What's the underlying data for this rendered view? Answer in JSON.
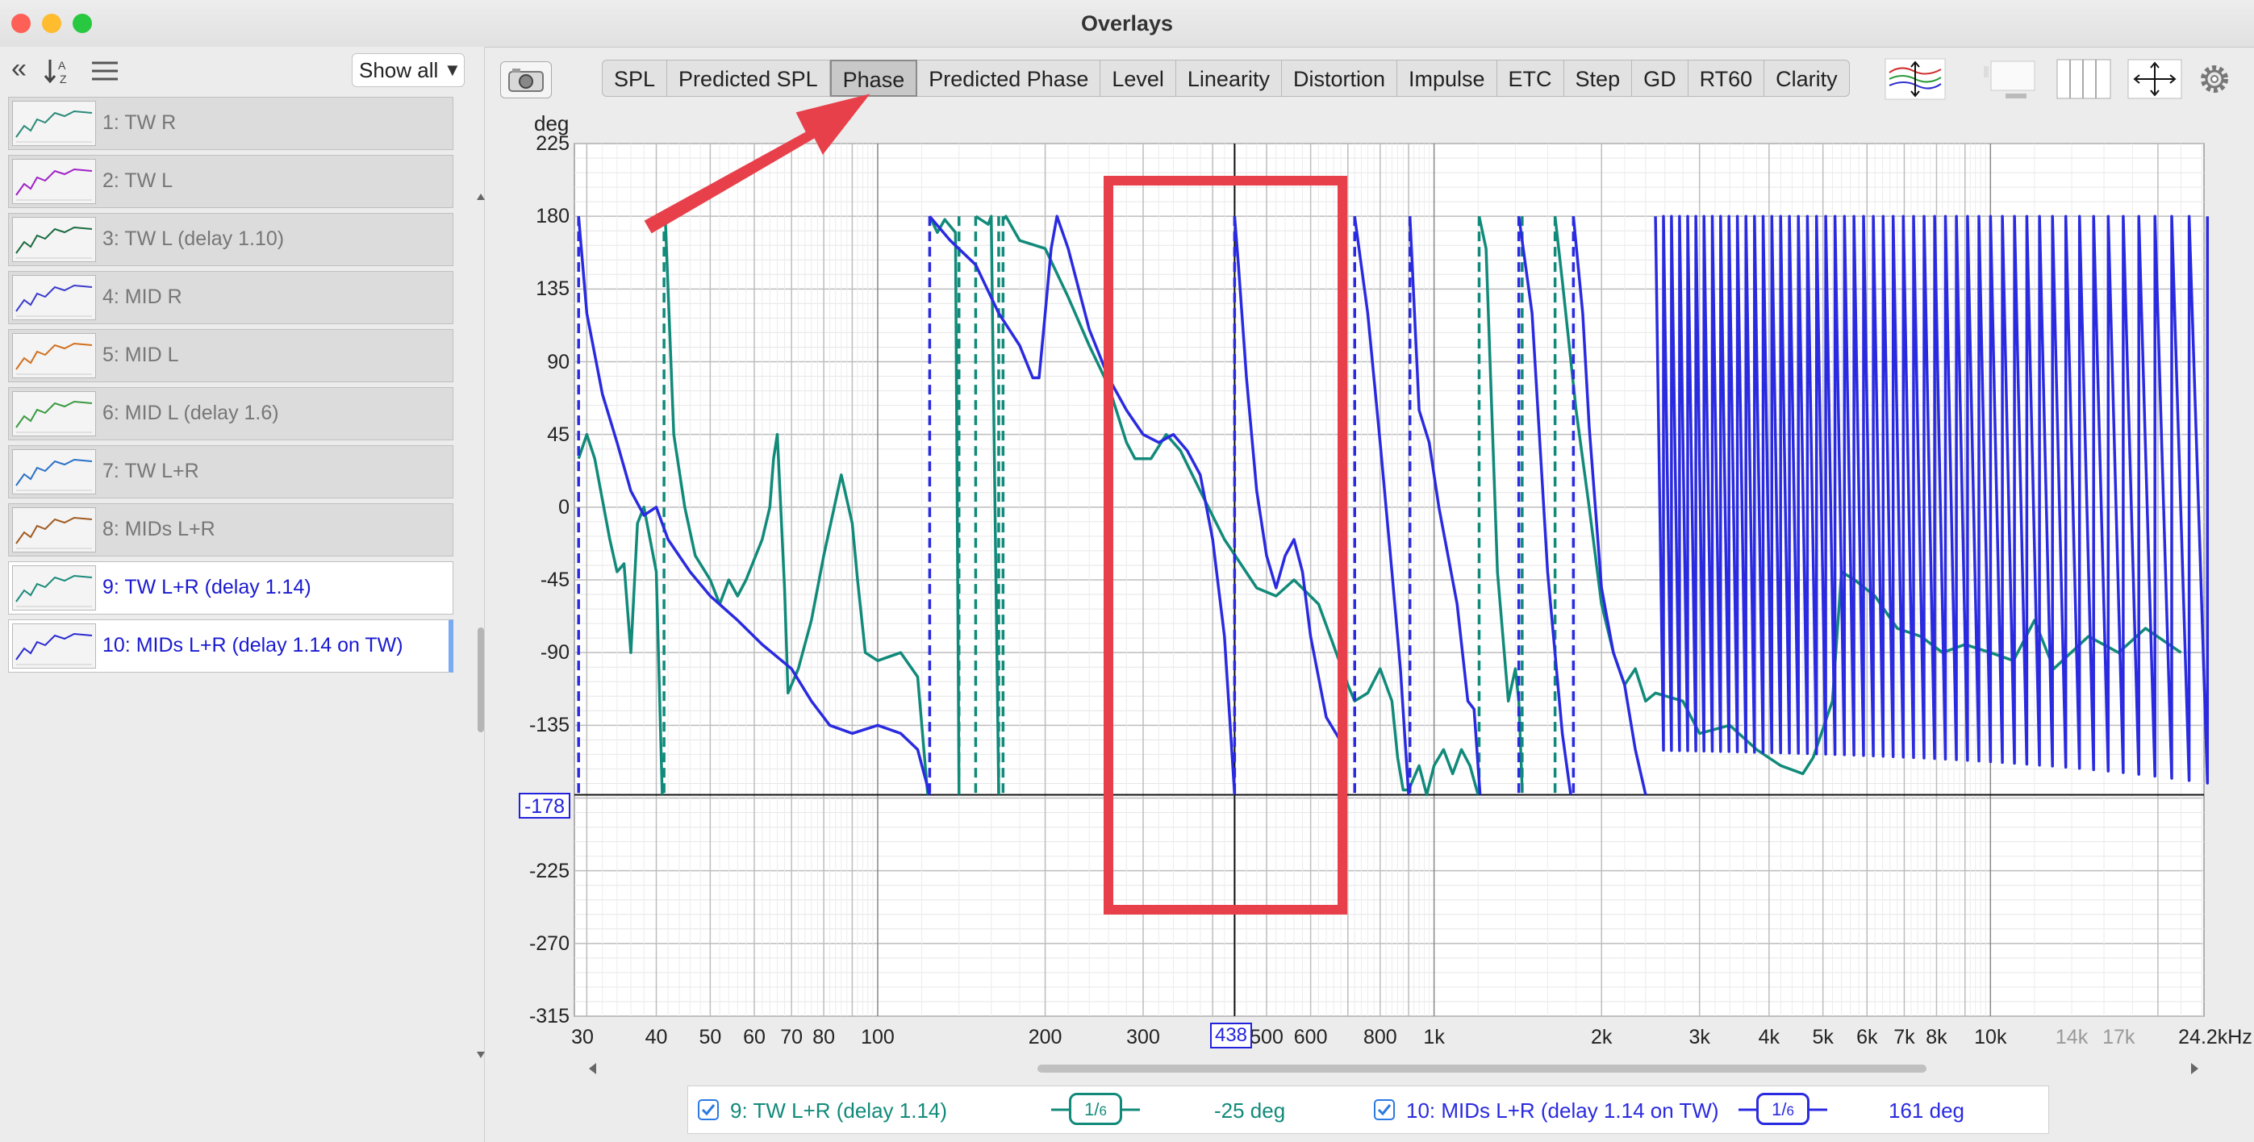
{
  "window": {
    "title": "Overlays"
  },
  "sidebar": {
    "show_all_label": "Show all",
    "measurements": [
      {
        "label": "1: TW R",
        "thumb_color": "#2a8a7a",
        "active": false
      },
      {
        "label": "2: TW L",
        "thumb_color": "#a020c8",
        "active": false
      },
      {
        "label": "3: TW L (delay 1.10)",
        "thumb_color": "#1a6a40",
        "active": false
      },
      {
        "label": "4: MID R",
        "thumb_color": "#3a3acc",
        "active": false
      },
      {
        "label": "5: MID L",
        "thumb_color": "#d07020",
        "active": false
      },
      {
        "label": "6: MID L (delay 1.6)",
        "thumb_color": "#3a9a40",
        "active": false
      },
      {
        "label": "7: TW L+R",
        "thumb_color": "#2a70c8",
        "active": false
      },
      {
        "label": "8: MIDs L+R",
        "thumb_color": "#a05a20",
        "active": false
      },
      {
        "label": "9: TW L+R (delay 1.14)",
        "thumb_color": "#1a8a7a",
        "active": true
      },
      {
        "label": "10: MIDs L+R (delay 1.14 on TW)",
        "thumb_color": "#2a2ad0",
        "active": true
      }
    ]
  },
  "toolbar": {
    "tabs": [
      "SPL",
      "Predicted SPL",
      "Phase",
      "Predicted Phase",
      "Level",
      "Linearity",
      "Distortion",
      "Impulse",
      "ETC",
      "Step",
      "GD",
      "RT60",
      "Clarity"
    ],
    "selected_tab": "Phase"
  },
  "graph": {
    "y_unit": "deg",
    "y_ticks": [
      "225",
      "180",
      "135",
      "90",
      "45",
      "0",
      "-45",
      "-90",
      "-135",
      "-225",
      "-270",
      "-315"
    ],
    "cursor_y_readout": "-178",
    "cursor_x_readout": "438",
    "x_ticks": [
      {
        "label": "30"
      },
      {
        "label": "40"
      },
      {
        "label": "50"
      },
      {
        "label": "60"
      },
      {
        "label": "70"
      },
      {
        "label": "80"
      },
      {
        "label": "100"
      },
      {
        "label": "200"
      },
      {
        "label": "300"
      },
      {
        "label": "500"
      },
      {
        "label": "600"
      },
      {
        "label": "800"
      },
      {
        "label": "1k"
      },
      {
        "label": "2k"
      },
      {
        "label": "3k"
      },
      {
        "label": "4k"
      },
      {
        "label": "5k"
      },
      {
        "label": "6k"
      },
      {
        "label": "7k"
      },
      {
        "label": "8k"
      },
      {
        "label": "10k"
      },
      {
        "label": "14k",
        "faint": true
      },
      {
        "label": "17k",
        "faint": true
      },
      {
        "label": "24.2kHz"
      }
    ],
    "colors": {
      "teal": "#118a7a",
      "blue": "#2a2ae0",
      "annotation": "#e8404a"
    }
  },
  "legend": {
    "entries": [
      {
        "label": "9: TW L+R (delay 1.14)",
        "smoothing_num": "1",
        "smoothing_den": "6",
        "value": "-25 deg",
        "color": "#118a7a"
      },
      {
        "label": "10: MIDs L+R (delay 1.14 on TW)",
        "smoothing_num": "1",
        "smoothing_den": "6",
        "value": "161 deg",
        "color": "#2a2ae0"
      }
    ]
  }
}
